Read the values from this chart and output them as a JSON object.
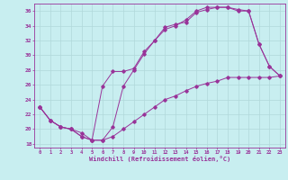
{
  "xlabel": "Windchill (Refroidissement éolien,°C)",
  "xlim": [
    -0.5,
    23.5
  ],
  "ylim": [
    17.5,
    37.0
  ],
  "yticks": [
    18,
    20,
    22,
    24,
    26,
    28,
    30,
    32,
    34,
    36
  ],
  "xticks": [
    0,
    1,
    2,
    3,
    4,
    5,
    6,
    7,
    8,
    9,
    10,
    11,
    12,
    13,
    14,
    15,
    16,
    17,
    18,
    19,
    20,
    21,
    22,
    23
  ],
  "bg_color": "#c8eef0",
  "line_color": "#993399",
  "grid_color": "#b0d8da",
  "line1_x": [
    0,
    1,
    2,
    3,
    4,
    5,
    6,
    7,
    8,
    9,
    10,
    11,
    12,
    13,
    14,
    15,
    16,
    17,
    18,
    19,
    20,
    21,
    22,
    23
  ],
  "line1_y": [
    23.0,
    21.2,
    20.3,
    20.0,
    19.0,
    18.5,
    18.5,
    19.0,
    20.0,
    21.0,
    22.0,
    23.0,
    24.0,
    24.5,
    25.2,
    25.8,
    26.2,
    26.5,
    27.0,
    27.0,
    27.0,
    27.0,
    27.0,
    27.2
  ],
  "line2_x": [
    0,
    1,
    2,
    3,
    4,
    5,
    6,
    7,
    8,
    9,
    10,
    11,
    12,
    13,
    14,
    15,
    16,
    17,
    18,
    19,
    20,
    21,
    22,
    23
  ],
  "line2_y": [
    23.0,
    21.2,
    20.3,
    20.0,
    19.0,
    18.5,
    18.5,
    20.3,
    25.8,
    28.0,
    30.2,
    32.0,
    33.8,
    34.2,
    34.5,
    35.8,
    36.2,
    36.5,
    36.5,
    36.0,
    36.0,
    31.5,
    28.5,
    27.2
  ],
  "line3_x": [
    0,
    1,
    2,
    3,
    4,
    5,
    6,
    7,
    8,
    9,
    10,
    11,
    12,
    13,
    14,
    15,
    16,
    17,
    18,
    19,
    20,
    21,
    22,
    23
  ],
  "line3_y": [
    23.0,
    21.2,
    20.3,
    20.0,
    19.5,
    18.5,
    25.8,
    27.8,
    27.8,
    28.2,
    30.5,
    32.0,
    33.5,
    34.0,
    34.8,
    36.0,
    36.5,
    36.5,
    36.5,
    36.2,
    36.0,
    31.5,
    28.5,
    27.2
  ]
}
